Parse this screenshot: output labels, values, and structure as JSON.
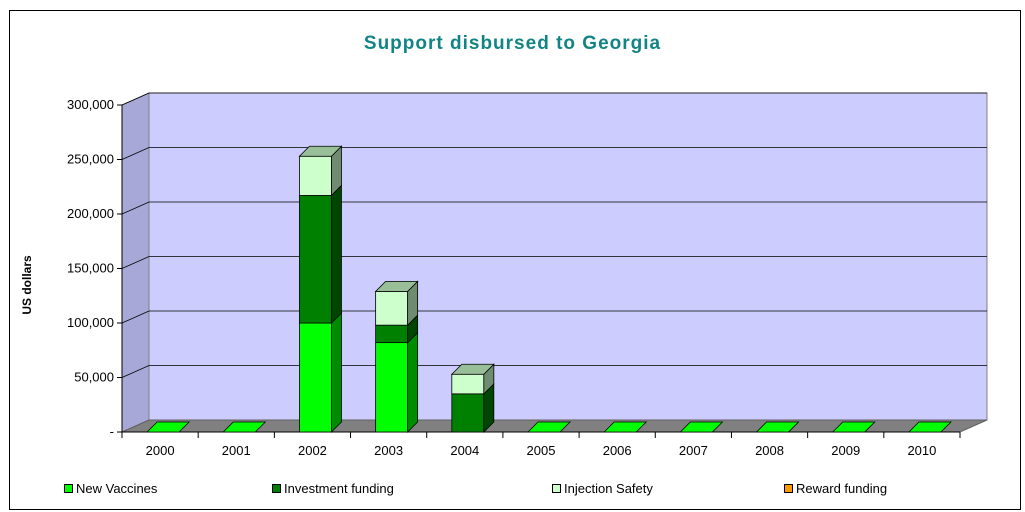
{
  "chart_data": {
    "type": "bar",
    "stacked": true,
    "three_d": true,
    "title": "Support disbursed to Georgia",
    "ylabel": "US dollars",
    "xlabel": "",
    "categories": [
      "2000",
      "2001",
      "2002",
      "2003",
      "2004",
      "2005",
      "2006",
      "2007",
      "2008",
      "2009",
      "2010"
    ],
    "series": [
      {
        "name": "New Vaccines",
        "color": "#00ff00",
        "values": [
          0,
          0,
          100000,
          82000,
          0,
          0,
          0,
          0,
          0,
          0,
          0
        ]
      },
      {
        "name": "Investment funding",
        "color": "#008000",
        "values": [
          0,
          0,
          117000,
          16000,
          35000,
          0,
          0,
          0,
          0,
          0,
          0
        ]
      },
      {
        "name": "Injection Safety",
        "color": "#ccffcc",
        "values": [
          0,
          0,
          36000,
          31000,
          18000,
          0,
          0,
          0,
          0,
          0,
          0
        ]
      },
      {
        "name": "Reward funding",
        "color": "#ff9900",
        "values": [
          0,
          0,
          0,
          0,
          0,
          0,
          0,
          0,
          0,
          0,
          0
        ]
      }
    ],
    "ylim": [
      0,
      300000
    ],
    "yticks": [
      0,
      50000,
      100000,
      150000,
      200000,
      250000,
      300000
    ],
    "ytick_labels": [
      "-",
      "50,000",
      "100,000",
      "150,000",
      "200,000",
      "250,000",
      "300,000"
    ],
    "grid": true,
    "legend_position": "bottom",
    "plot_background": "#ccccff",
    "floor_color": "#808080"
  }
}
